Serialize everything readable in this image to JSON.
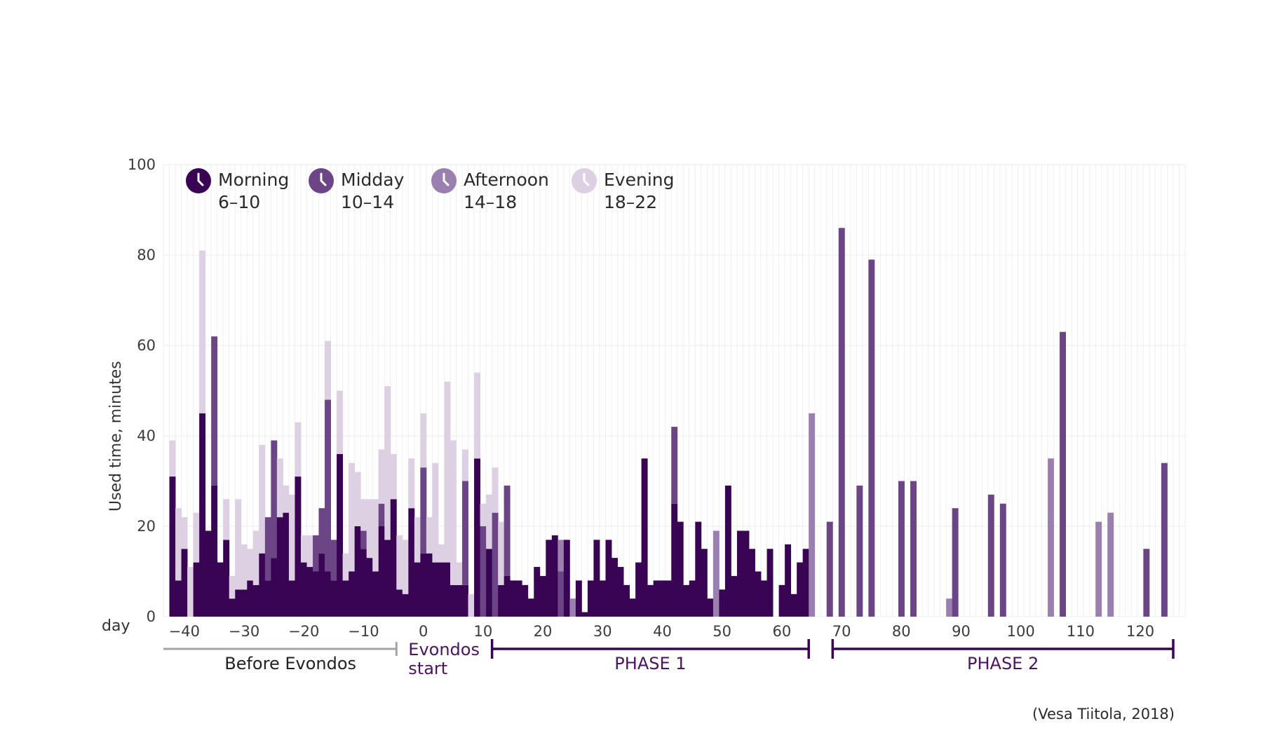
{
  "chart_data": {
    "type": "bar",
    "stacked": true,
    "xlabel": "day",
    "ylabel": "Used time, minutes",
    "ylim": [
      0,
      100
    ],
    "xlim": [
      -43,
      128
    ],
    "x_ticks": [
      -40,
      -30,
      -20,
      -10,
      0,
      10,
      20,
      30,
      40,
      50,
      60,
      70,
      80,
      90,
      100,
      110,
      120
    ],
    "y_ticks": [
      0,
      20,
      40,
      60,
      80,
      100
    ],
    "grid": true,
    "legend_position": "top-left",
    "colors": {
      "Morning": "#3a0454",
      "Midday": "#6c4586",
      "Afternoon": "#9a80ae",
      "Evening": "#dcd0e2"
    },
    "legend": [
      {
        "name": "Morning",
        "range": "6–10",
        "icon": "clock-icon"
      },
      {
        "name": "Midday",
        "range": "10–14",
        "icon": "clock-icon"
      },
      {
        "name": "Afternoon",
        "range": "14–18",
        "icon": "clock-icon"
      },
      {
        "name": "Evening",
        "range": "18–22",
        "icon": "clock-icon"
      }
    ],
    "phases": [
      {
        "label": "Before Evondos",
        "start": -43,
        "end": -4,
        "color": "#a3a6a8",
        "type": "line-left-tick"
      },
      {
        "label_lines": [
          "Evondos",
          "start"
        ],
        "start": -4,
        "end": 12,
        "color": "#4a1463",
        "type": "text"
      },
      {
        "label": "PHASE 1",
        "start": 12,
        "end": 65,
        "color": "#3a0454",
        "type": "bracket"
      },
      {
        "label": "PHASE 2",
        "start": 69,
        "end": 126,
        "color": "#3a0454",
        "type": "bracket"
      }
    ],
    "credit": "(Vesa Tiitola, 2018)",
    "days": [
      {
        "x": -42,
        "m": 31,
        "e": 8
      },
      {
        "x": -41,
        "m": 8,
        "e": 16
      },
      {
        "x": -40,
        "m": 15,
        "e": 7
      },
      {
        "x": -39,
        "e": 11
      },
      {
        "x": -38,
        "m": 12,
        "e": 11
      },
      {
        "x": -37,
        "m": 45,
        "e": 36
      },
      {
        "x": -36,
        "m": 19
      },
      {
        "x": -35,
        "m": 29,
        "mid": 33
      },
      {
        "x": -34,
        "m": 12
      },
      {
        "x": -33,
        "m": 17,
        "e": 9
      },
      {
        "x": -32,
        "m": 4,
        "e": 5
      },
      {
        "x": -31,
        "m": 6,
        "e": 20
      },
      {
        "x": -30,
        "m": 6,
        "e": 10
      },
      {
        "x": -29,
        "m": 8,
        "e": 7
      },
      {
        "x": -28,
        "m": 7,
        "e": 12
      },
      {
        "x": -27,
        "m": 14,
        "e": 24
      },
      {
        "x": -26,
        "m": 8,
        "mid": 14
      },
      {
        "x": -25,
        "m": 13,
        "mid": 26
      },
      {
        "x": -24,
        "m": 22,
        "e": 13
      },
      {
        "x": -23,
        "m": 23,
        "e": 6
      },
      {
        "x": -22,
        "m": 8,
        "e": 19
      },
      {
        "x": -21,
        "m": 31,
        "e": 12
      },
      {
        "x": -20,
        "m": 12,
        "e": 6
      },
      {
        "x": -19,
        "m": 11,
        "e": 7
      },
      {
        "x": -18,
        "m": 10,
        "mid": 8
      },
      {
        "x": -17,
        "m": 14,
        "mid": 10
      },
      {
        "x": -16,
        "m": 10,
        "mid": 38,
        "e": 13
      },
      {
        "x": -15,
        "m": 8,
        "mid": 9
      },
      {
        "x": -14,
        "m": 36,
        "e": 14
      },
      {
        "x": -13,
        "m": 8,
        "e": 6
      },
      {
        "x": -12,
        "m": 10,
        "e": 24
      },
      {
        "x": -11,
        "m": 20,
        "e": 12
      },
      {
        "x": -10,
        "m": 15,
        "mid": 4,
        "e": 7
      },
      {
        "x": -9,
        "m": 13,
        "e": 13
      },
      {
        "x": -8,
        "m": 10,
        "e": 16
      },
      {
        "x": -7,
        "m": 20,
        "mid": 5,
        "e": 12
      },
      {
        "x": -6,
        "m": 17,
        "e": 34
      },
      {
        "x": -5,
        "m": 26,
        "e": 10
      },
      {
        "x": -4,
        "m": 6,
        "e": 12
      },
      {
        "x": -3,
        "m": 5,
        "e": 12
      },
      {
        "x": -2,
        "m": 24,
        "e": 11
      },
      {
        "x": -1,
        "m": 12,
        "e": 10
      },
      {
        "x": 0,
        "m": 14,
        "mid": 19,
        "e": 12
      },
      {
        "x": 1,
        "m": 14,
        "e": 8
      },
      {
        "x": 2,
        "m": 12,
        "e": 22
      },
      {
        "x": 3,
        "m": 12,
        "e": 4
      },
      {
        "x": 4,
        "m": 12,
        "e": 40
      },
      {
        "x": 5,
        "m": 7,
        "e": 32
      },
      {
        "x": 6,
        "m": 7,
        "e": 5
      },
      {
        "x": 7,
        "m": 7,
        "mid": 23,
        "e": 7
      },
      {
        "x": 8,
        "e": 5
      },
      {
        "x": 9,
        "m": 35,
        "e": 19
      },
      {
        "x": 10,
        "mid": 20,
        "e": 5
      },
      {
        "x": 11,
        "m": 15,
        "e": 12
      },
      {
        "x": 12,
        "mid": 23,
        "e": 10
      },
      {
        "x": 13,
        "m": 7,
        "e": 14
      },
      {
        "x": 14,
        "m": 9,
        "mid": 20
      },
      {
        "x": 15,
        "m": 8
      },
      {
        "x": 16,
        "m": 8
      },
      {
        "x": 17,
        "m": 7
      },
      {
        "x": 18,
        "m": 4
      },
      {
        "x": 19,
        "m": 11
      },
      {
        "x": 20,
        "m": 9
      },
      {
        "x": 21,
        "m": 17
      },
      {
        "x": 22,
        "m": 18
      },
      {
        "x": 23,
        "a": 7,
        "mid": 10
      },
      {
        "x": 24,
        "m": 17
      },
      {
        "x": 25,
        "a": 4
      },
      {
        "x": 26,
        "m": 8
      },
      {
        "x": 27,
        "m": 1
      },
      {
        "x": 28,
        "m": 8
      },
      {
        "x": 29,
        "m": 17
      },
      {
        "x": 30,
        "m": 8
      },
      {
        "x": 31,
        "m": 17
      },
      {
        "x": 32,
        "m": 13
      },
      {
        "x": 33,
        "m": 11
      },
      {
        "x": 34,
        "m": 7
      },
      {
        "x": 35,
        "m": 4
      },
      {
        "x": 36,
        "m": 12
      },
      {
        "x": 37,
        "m": 35
      },
      {
        "x": 38,
        "m": 7
      },
      {
        "x": 39,
        "m": 8
      },
      {
        "x": 40,
        "m": 8
      },
      {
        "x": 41,
        "m": 8
      },
      {
        "x": 42,
        "m": 25,
        "mid": 17
      },
      {
        "x": 43,
        "m": 21
      },
      {
        "x": 44,
        "m": 7
      },
      {
        "x": 45,
        "m": 8
      },
      {
        "x": 46,
        "m": 21
      },
      {
        "x": 47,
        "m": 15
      },
      {
        "x": 48,
        "m": 4
      },
      {
        "x": 49,
        "a": 19
      },
      {
        "x": 50,
        "m": 6
      },
      {
        "x": 51,
        "m": 29
      },
      {
        "x": 52,
        "m": 9
      },
      {
        "x": 53,
        "m": 19
      },
      {
        "x": 54,
        "m": 19
      },
      {
        "x": 55,
        "m": 15
      },
      {
        "x": 56,
        "m": 10
      },
      {
        "x": 57,
        "m": 8
      },
      {
        "x": 58,
        "m": 15
      },
      {
        "x": 60,
        "m": 7
      },
      {
        "x": 61,
        "m": 16
      },
      {
        "x": 62,
        "m": 5
      },
      {
        "x": 63,
        "m": 12
      },
      {
        "x": 64,
        "m": 15
      },
      {
        "x": 65,
        "a": 45
      },
      {
        "x": 68,
        "mid": 21
      },
      {
        "x": 70,
        "mid": 86
      },
      {
        "x": 73,
        "mid": 29
      },
      {
        "x": 75,
        "mid": 79
      },
      {
        "x": 80,
        "mid": 30
      },
      {
        "x": 82,
        "mid": 30
      },
      {
        "x": 88,
        "a": 4
      },
      {
        "x": 89,
        "mid": 24
      },
      {
        "x": 95,
        "mid": 27
      },
      {
        "x": 97,
        "mid": 25
      },
      {
        "x": 105,
        "a": 35
      },
      {
        "x": 107,
        "mid": 63
      },
      {
        "x": 113,
        "a": 21
      },
      {
        "x": 115,
        "a": 23
      },
      {
        "x": 121,
        "mid": 15
      },
      {
        "x": 124,
        "mid": 34
      }
    ]
  }
}
